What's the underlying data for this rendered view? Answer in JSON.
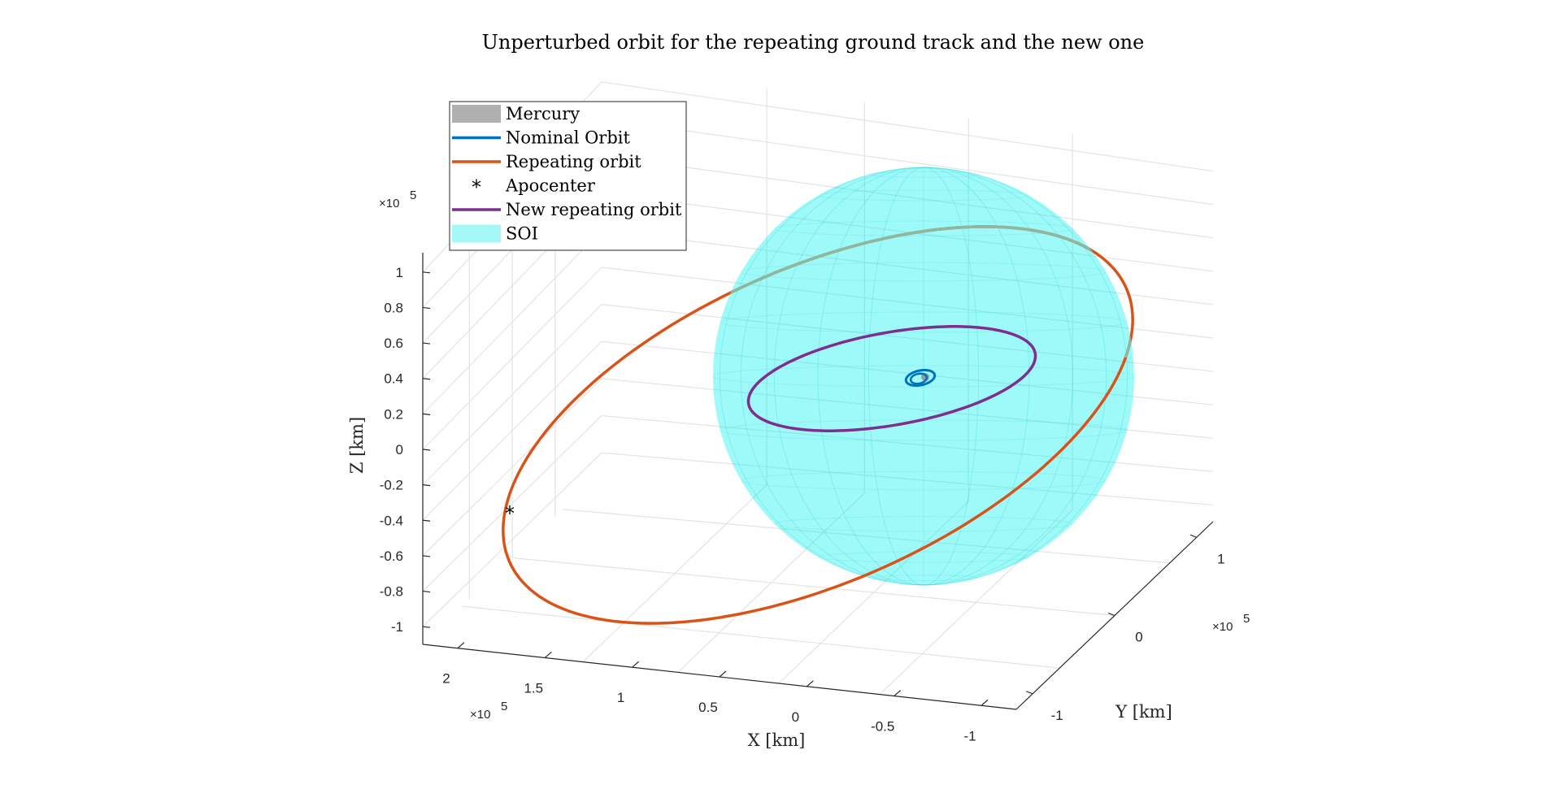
{
  "chart_data": {
    "type": "line",
    "title": "Unperturbed orbit for the repeating ground track and the new one",
    "xlabel": "X [km]",
    "ylabel": "Y [km]",
    "zlabel": "Z [km]",
    "x_ticks": [
      "2",
      "1.5",
      "1",
      "0.5",
      "0",
      "-0.5",
      "-1"
    ],
    "y_ticks": [
      "-1",
      "0",
      "1"
    ],
    "z_ticks": [
      "1",
      "0.8",
      "0.6",
      "0.4",
      "0.2",
      "0",
      "-0.2",
      "-0.4",
      "-0.6",
      "-0.8",
      "-1"
    ],
    "x_exponent": "×10",
    "y_exponent": "×10",
    "z_exponent": "×10",
    "exponent_power": "5",
    "xlim": [
      -1.2,
      2.2
    ],
    "ylim": [
      -1.2,
      1.2
    ],
    "zlim": [
      -1.1,
      1.1
    ],
    "grid": true,
    "legend_position": "top-left",
    "legend": [
      {
        "name": "Mercury",
        "kind": "patch",
        "color": "#b0b0b0"
      },
      {
        "name": "Nominal Orbit",
        "kind": "line",
        "color": "#0072bd"
      },
      {
        "name": "Repeating orbit",
        "kind": "line",
        "color": "#d95319"
      },
      {
        "name": "Apocenter",
        "kind": "marker",
        "color": "#000000"
      },
      {
        "name": "New repeating orbit",
        "kind": "line",
        "color": "#7e2f8e"
      },
      {
        "name": "SOI",
        "kind": "patch",
        "color": "#a6f7f7"
      }
    ],
    "soi": {
      "center": [
        0,
        0,
        0
      ],
      "radius_1e5_km": 0.96,
      "color": "#00f0f0"
    },
    "mercury": {
      "color": "#9a9a9a"
    },
    "series": [
      {
        "name": "Nominal Orbit",
        "color": "#0072bd"
      },
      {
        "name": "Repeating orbit",
        "color": "#d95319"
      },
      {
        "name": "New repeating orbit",
        "color": "#7e2f8e"
      },
      {
        "name": "Apocenter",
        "color": "#000000"
      }
    ]
  }
}
